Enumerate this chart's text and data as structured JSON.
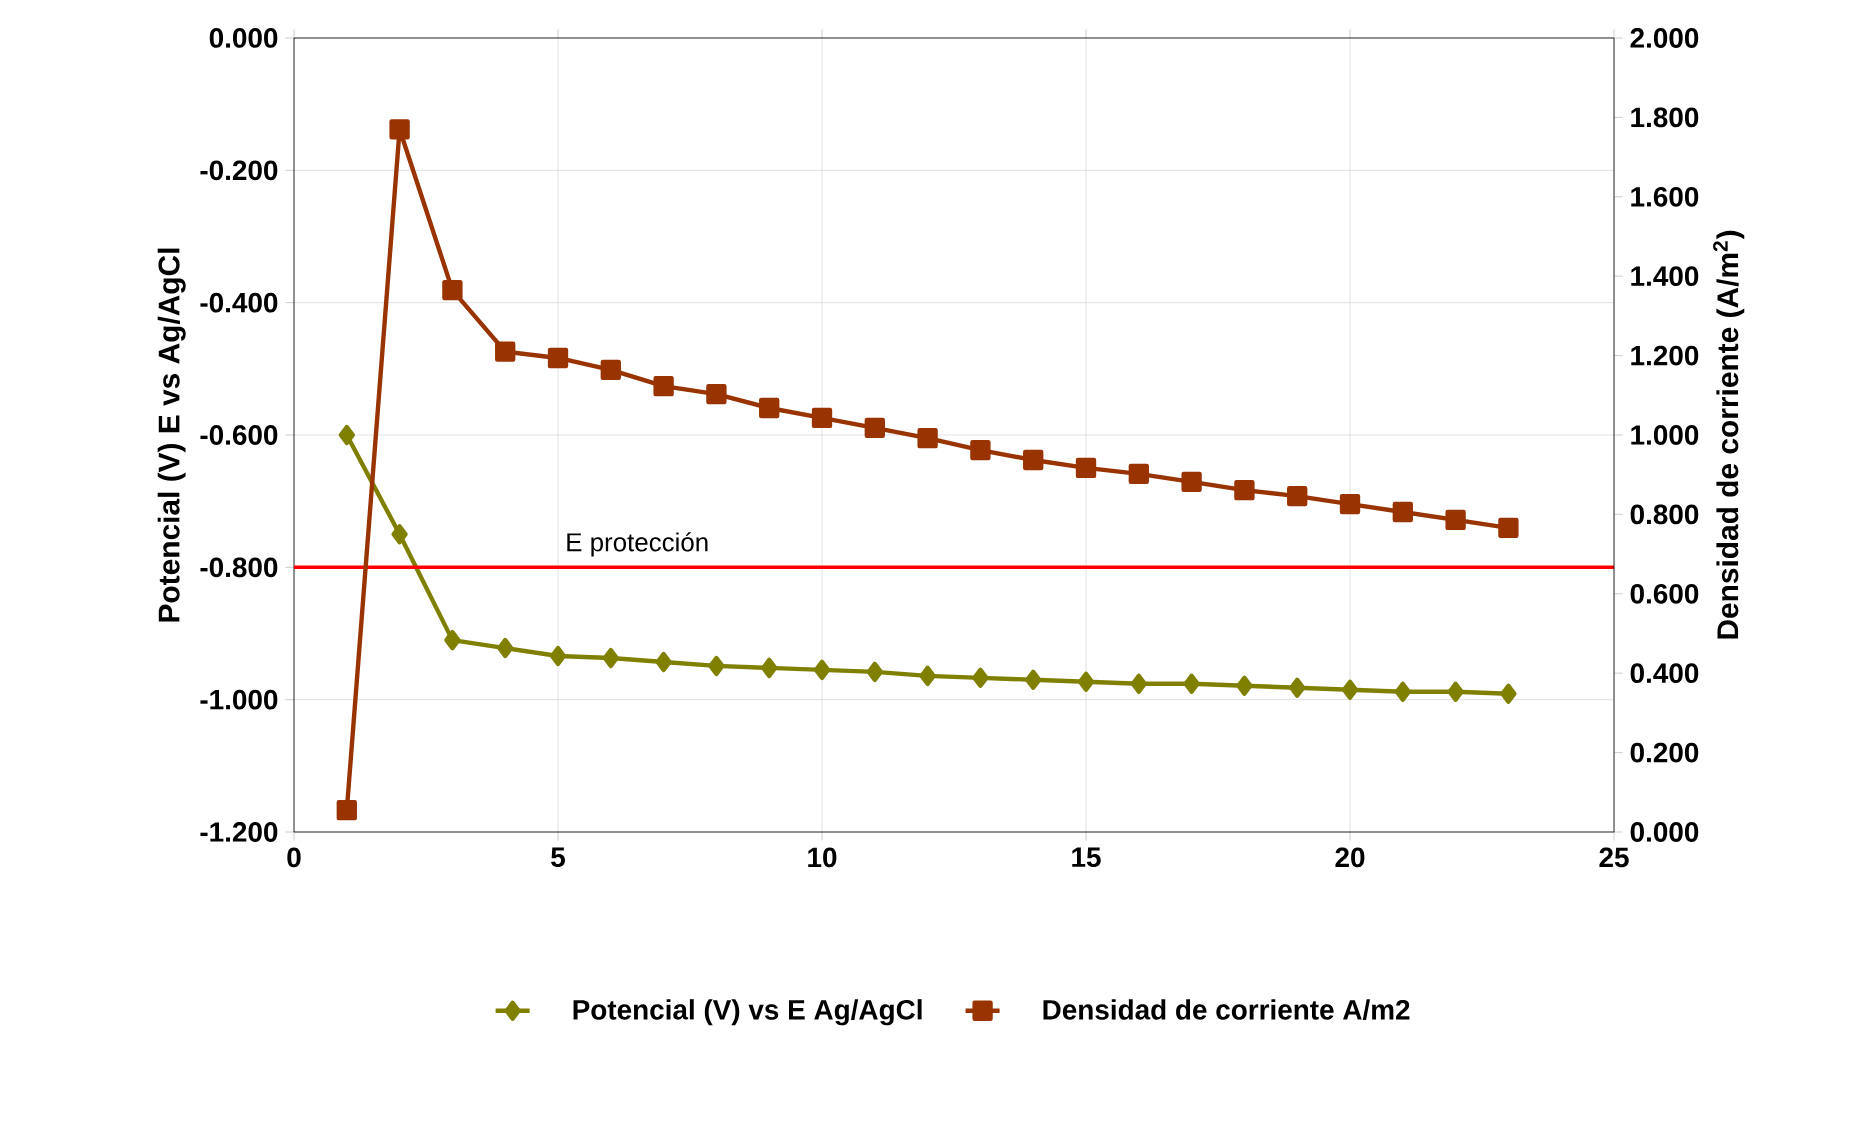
{
  "chart_data": {
    "type": "line",
    "xlim": [
      0,
      25
    ],
    "xticks": [
      0,
      5,
      10,
      15,
      20,
      25
    ],
    "ylim": [
      -1.2,
      0
    ],
    "yticks": [
      {
        "value": -1.2,
        "label": "-1.200"
      },
      {
        "value": -1.0,
        "label": "-1.000"
      },
      {
        "value": -0.8,
        "label": "-0.800"
      },
      {
        "value": -0.6,
        "label": "-0.600"
      },
      {
        "value": -0.4,
        "label": "-0.400"
      },
      {
        "value": -0.2,
        "label": "-0.200"
      },
      {
        "value": 0,
        "label": "0.000"
      }
    ],
    "y2lim": [
      0,
      2
    ],
    "y2ticks": [
      {
        "value": 0,
        "label": "0.000"
      },
      {
        "value": 0.2,
        "label": "0.200"
      },
      {
        "value": 0.4,
        "label": "0.400"
      },
      {
        "value": 0.6,
        "label": "0.600"
      },
      {
        "value": 0.8,
        "label": "0.800"
      },
      {
        "value": 1.0,
        "label": "1.000"
      },
      {
        "value": 1.2,
        "label": "1.200"
      },
      {
        "value": 1.4,
        "label": "1.400"
      },
      {
        "value": 1.6,
        "label": "1.600"
      },
      {
        "value": 1.8,
        "label": "1.800"
      },
      {
        "value": 2.0,
        "label": "2.000"
      }
    ],
    "ylabel": "Potencial (V) E vs Ag/AgCl",
    "y2label": "Densidad de corriente (A/m$^{2}$)",
    "x": [
      1,
      2,
      3,
      4,
      5,
      6,
      7,
      8,
      9,
      10,
      11,
      12,
      13,
      14,
      15,
      16,
      17,
      18,
      19,
      20,
      21,
      22,
      23
    ],
    "series": [
      {
        "name": "Potencial (V) vs E Ag/AgCl",
        "color": "#808000",
        "marker": "diamond",
        "values": [
          -0.6,
          -0.75,
          -0.91,
          -0.922,
          -0.934,
          -0.937,
          -0.943,
          -0.949,
          -0.952,
          -0.955,
          -0.958,
          -0.964,
          -0.967,
          -0.97,
          -0.973,
          -0.976,
          -0.976,
          -0.979,
          -0.982,
          -0.985,
          -0.988,
          -0.988,
          -0.991
        ]
      },
      {
        "name": "Densidad de corriente A/m2",
        "color": "#993300",
        "marker": "square",
        "axis": "y2",
        "values": [
          0.055,
          1.77,
          1.365,
          1.21,
          1.194,
          1.164,
          1.123,
          1.103,
          1.068,
          1.043,
          1.018,
          0.992,
          0.962,
          0.937,
          0.917,
          0.902,
          0.882,
          0.861,
          0.846,
          0.826,
          0.806,
          0.786,
          0.766
        ]
      }
    ],
    "ref_lines": [
      {
        "axis": "y",
        "value": -0.8,
        "label": "E protección",
        "color": "#ff0000"
      }
    ],
    "grid": true,
    "legend": "bottom",
    "line_style": "solid"
  }
}
